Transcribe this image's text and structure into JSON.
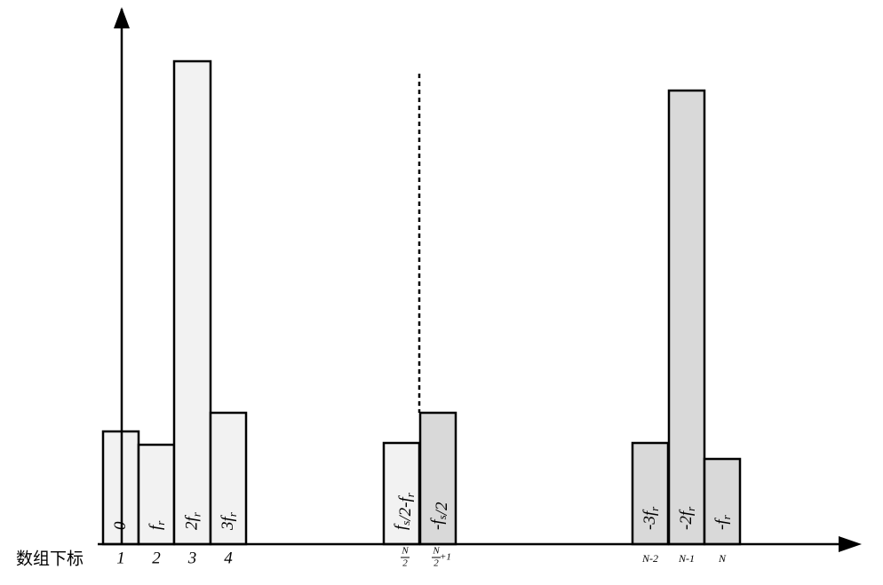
{
  "axis_label": "数组下标",
  "bars": [
    {
      "label": [
        {
          "text": "0"
        }
      ],
      "index": {
        "text": "1"
      }
    },
    {
      "label": [
        {
          "text": "f"
        },
        {
          "sub": "r"
        }
      ],
      "index": {
        "text": "2"
      }
    },
    {
      "label": [
        {
          "text": "2f"
        },
        {
          "sub": "r"
        }
      ],
      "index": {
        "text": "3"
      }
    },
    {
      "label": [
        {
          "text": "3f"
        },
        {
          "sub": "r"
        }
      ],
      "index": {
        "text": "4"
      }
    },
    {
      "label": [
        {
          "text": "f"
        },
        {
          "sub": "s"
        },
        {
          "text": "/2-f"
        },
        {
          "sub": "r"
        }
      ],
      "index": {
        "num": "N",
        "den": "2"
      }
    },
    {
      "label": [
        {
          "text": "-f"
        },
        {
          "sub": "s"
        },
        {
          "text": "/2"
        }
      ],
      "index": {
        "num": "N",
        "den": "2",
        "suffix": "+1"
      }
    },
    {
      "label": [
        {
          "text": "-3f"
        },
        {
          "sub": "r"
        }
      ],
      "index": {
        "text": "N-2"
      }
    },
    {
      "label": [
        {
          "text": "-2f"
        },
        {
          "sub": "r"
        }
      ],
      "index": {
        "text": "N-1"
      }
    },
    {
      "label": [
        {
          "text": "-f"
        },
        {
          "sub": "r"
        }
      ],
      "index": {
        "text": "N"
      }
    }
  ]
}
